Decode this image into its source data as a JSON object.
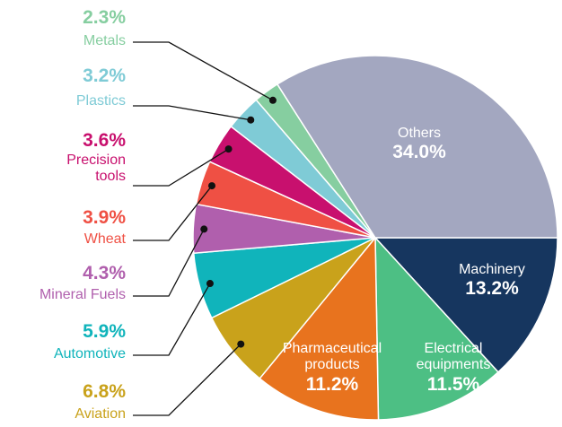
{
  "chart_data": {
    "type": "pie",
    "categories": [
      "Machinery",
      "Electrical equipments",
      "Pharmaceutical products",
      "Aviation",
      "Automotive",
      "Mineral Fuels",
      "Wheat",
      "Precision tools",
      "Plastics",
      "Metals",
      "Others"
    ],
    "values": [
      13.2,
      11.5,
      11.2,
      6.8,
      5.9,
      4.3,
      3.9,
      3.6,
      3.2,
      2.3,
      34.0
    ],
    "value_labels": [
      "13.2%",
      "11.5%",
      "11.2%",
      "6.8%",
      "5.9%",
      "4.3%",
      "3.9%",
      "3.6%",
      "3.2%",
      "2.3%",
      "34.0%"
    ],
    "colors": [
      "#16365f",
      "#4dbf84",
      "#e8731e",
      "#c9a21b",
      "#10b4bb",
      "#b05fad",
      "#ef5044",
      "#c8106e",
      "#7fcbd6",
      "#86cea0",
      "#a3a7c0"
    ]
  }
}
